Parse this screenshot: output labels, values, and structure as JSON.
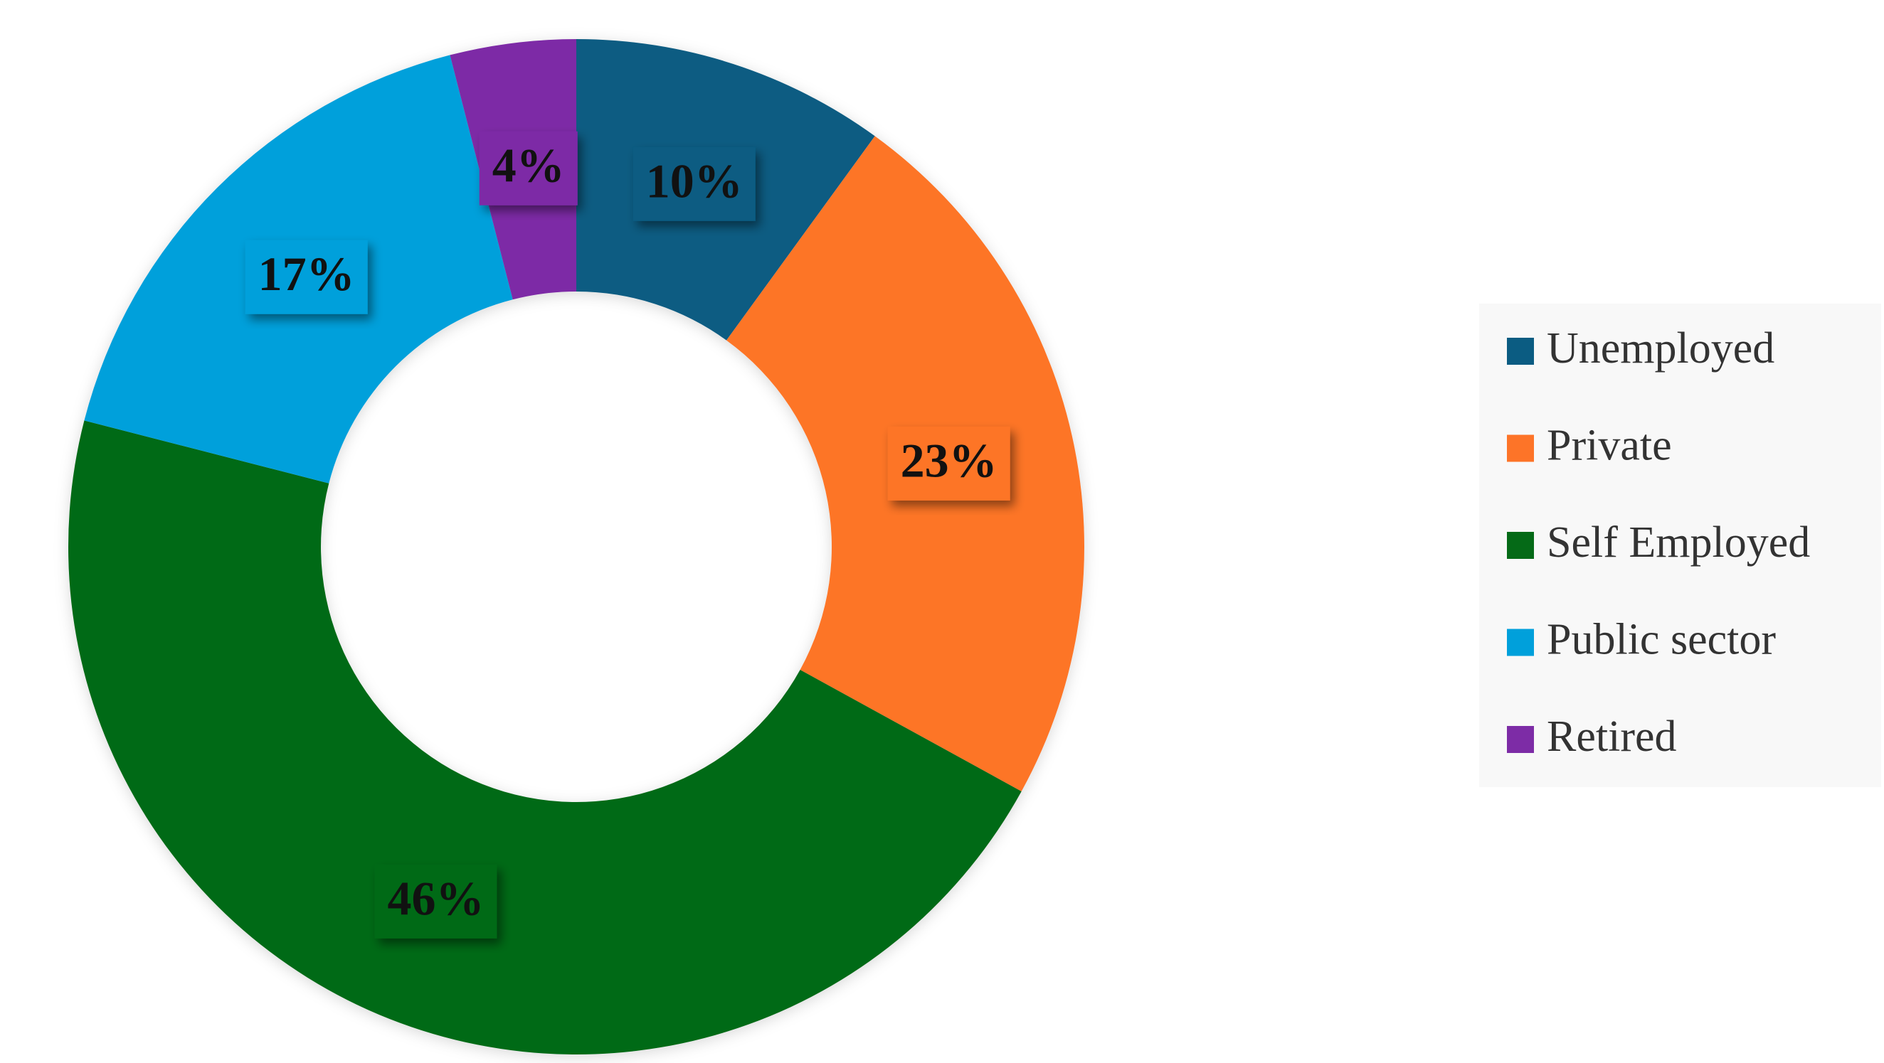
{
  "chart_data": {
    "type": "donut",
    "categories": [
      "Unemployed",
      "Private",
      "Self Employed",
      "Public sector",
      "Retired"
    ],
    "values": [
      10,
      23,
      46,
      17,
      4
    ],
    "value_labels": [
      "10%",
      "23%",
      "46%",
      "17%",
      "4%"
    ],
    "colors": [
      "#0b5c82",
      "#fd7428",
      "#056a17",
      "#00a0db",
      "#7d2ca6"
    ],
    "legend": "right"
  }
}
